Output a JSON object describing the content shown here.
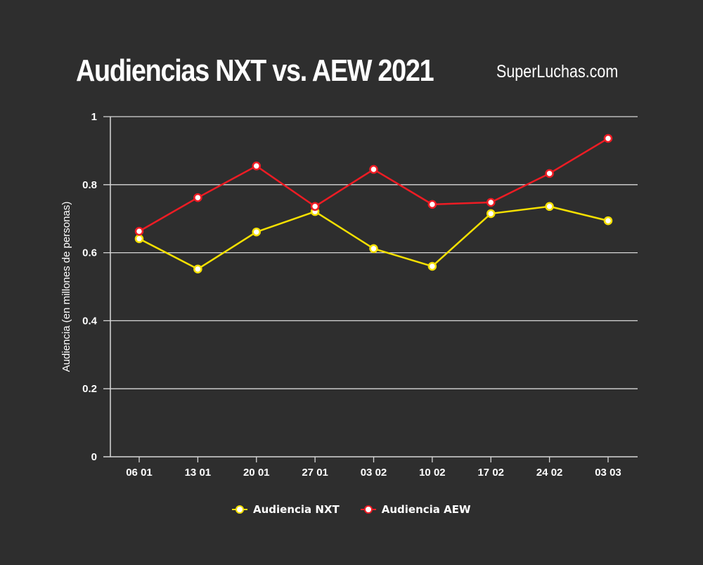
{
  "header": {
    "title": "Audiencias NXT vs. AEW 2021",
    "brand": "SuperLuchas.com"
  },
  "colors": {
    "background": "#2e2e2e",
    "grid": "#d8d8d8",
    "nxt": "#f5e000",
    "aew": "#ee1c24"
  },
  "chart_data": {
    "type": "line",
    "title": "Audiencias NXT vs. AEW 2021",
    "xlabel": "",
    "ylabel": "Audiencia (en millones de personas)",
    "ylim": [
      0,
      1
    ],
    "yticks": [
      "0",
      "0.2",
      "0.4",
      "0.6",
      "0.8",
      "1"
    ],
    "grid": true,
    "legend_position": "bottom",
    "categories": [
      "06 01",
      "13 01",
      "20 01",
      "27 01",
      "03 02",
      "10 02",
      "17 02",
      "24 02",
      "03 03"
    ],
    "series": [
      {
        "name": "Audiencia NXT",
        "color": "#f5e000",
        "values": [
          0.641,
          0.552,
          0.661,
          0.721,
          0.612,
          0.56,
          0.715,
          0.736,
          0.694
        ]
      },
      {
        "name": "Audiencia AEW",
        "color": "#ee1c24",
        "values": [
          0.663,
          0.762,
          0.855,
          0.736,
          0.845,
          0.742,
          0.748,
          0.833,
          0.936
        ]
      }
    ]
  }
}
